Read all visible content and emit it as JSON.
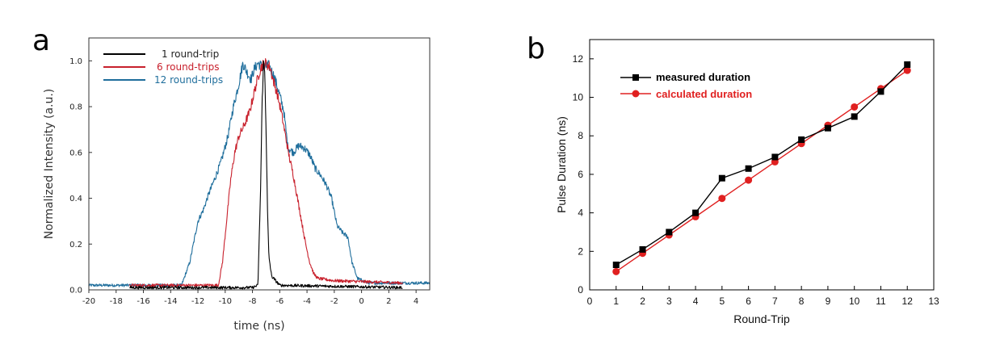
{
  "chart_data": [
    {
      "type": "line",
      "panel_label": "a",
      "xlabel": "time (ns)",
      "ylabel": "Normalized Intensity (a.u.)",
      "xlim": [
        -20,
        5
      ],
      "ylim": [
        0,
        1.1
      ],
      "xticks": [
        -20,
        -18,
        -16,
        -14,
        -12,
        -10,
        -8,
        -6,
        -4,
        -2,
        0,
        2,
        4
      ],
      "yticks": [
        0.0,
        0.2,
        0.4,
        0.6,
        0.8,
        1.0
      ],
      "ytick_labels": [
        "0.0",
        "0.2",
        "0.4",
        "0.6",
        "0.8",
        "1.0"
      ],
      "legend_position": "top-left",
      "series": [
        {
          "name": "1 round-trip",
          "color": "#000000",
          "x": [
            -17,
            -8,
            -7.6,
            -7.4,
            -7.3,
            -7.2,
            -7.1,
            -7.0,
            -6.9,
            -6.8,
            -6.6,
            -6.0,
            3
          ],
          "y": [
            0.01,
            0.01,
            0.02,
            0.45,
            0.8,
            0.99,
            0.95,
            0.7,
            0.35,
            0.15,
            0.06,
            0.02,
            0.01
          ]
        },
        {
          "name": "6 round-trips",
          "color": "#c8202c",
          "x": [
            -17,
            -10.5,
            -10.2,
            -9.9,
            -9.6,
            -9.3,
            -9.0,
            -8.6,
            -8.2,
            -7.8,
            -7.5,
            -7.3,
            -7.0,
            -6.7,
            -6.5,
            -6.2,
            -5.9,
            -5.6,
            -5.3,
            -5.0,
            -4.7,
            -4.4,
            -4.1,
            -3.8,
            -3.5,
            -3.2,
            -2.0,
            3
          ],
          "y": [
            0.02,
            0.02,
            0.12,
            0.3,
            0.48,
            0.6,
            0.67,
            0.72,
            0.78,
            0.88,
            0.95,
            0.98,
            0.99,
            0.97,
            0.92,
            0.86,
            0.78,
            0.68,
            0.58,
            0.5,
            0.4,
            0.3,
            0.2,
            0.12,
            0.07,
            0.05,
            0.04,
            0.03
          ]
        },
        {
          "name": "12 round-trips",
          "color": "#1f6e9c",
          "x": [
            -20,
            -13.2,
            -12.6,
            -12.0,
            -11.6,
            -11.2,
            -10.8,
            -10.3,
            -9.8,
            -9.4,
            -9.0,
            -8.7,
            -8.4,
            -8.1,
            -7.9,
            -7.6,
            -7.2,
            -6.8,
            -6.4,
            -6.0,
            -5.7,
            -5.4,
            -5.0,
            -4.6,
            -4.2,
            -3.8,
            -3.4,
            -3.0,
            -2.6,
            -2.2,
            -1.8,
            -1.4,
            -1.0,
            -0.7,
            -0.3,
            0.5,
            2.0,
            5.0
          ],
          "y": [
            0.02,
            0.02,
            0.12,
            0.3,
            0.35,
            0.42,
            0.48,
            0.56,
            0.67,
            0.8,
            0.9,
            0.99,
            0.95,
            0.92,
            0.96,
            0.99,
            0.97,
            0.98,
            0.93,
            0.85,
            0.78,
            0.62,
            0.6,
            0.63,
            0.62,
            0.59,
            0.53,
            0.5,
            0.46,
            0.4,
            0.28,
            0.25,
            0.23,
            0.12,
            0.05,
            0.03,
            0.03,
            0.03
          ]
        }
      ]
    },
    {
      "type": "line",
      "panel_label": "b",
      "xlabel": "Round-Trip",
      "ylabel": "Pulse Duration (ns)",
      "xlim": [
        0,
        13
      ],
      "ylim": [
        0,
        13
      ],
      "xticks": [
        0,
        1,
        2,
        3,
        4,
        5,
        6,
        7,
        8,
        9,
        10,
        11,
        12,
        13
      ],
      "yticks": [
        0,
        2,
        4,
        6,
        8,
        10,
        12
      ],
      "legend_position": "top-left",
      "series": [
        {
          "name": "measured duration",
          "color": "#000000",
          "marker": "square",
          "x": [
            1,
            2,
            3,
            4,
            5,
            6,
            7,
            8,
            9,
            10,
            11,
            12
          ],
          "y": [
            1.3,
            2.1,
            3.0,
            4.0,
            5.8,
            6.3,
            6.9,
            7.8,
            8.4,
            9.0,
            10.3,
            11.7
          ]
        },
        {
          "name": "calculated duration",
          "color": "#e02020",
          "marker": "circle",
          "x": [
            1,
            2,
            3,
            4,
            5,
            6,
            7,
            8,
            9,
            10,
            11,
            12
          ],
          "y": [
            0.95,
            1.9,
            2.85,
            3.8,
            4.75,
            5.7,
            6.65,
            7.6,
            8.55,
            9.5,
            10.45,
            11.4
          ]
        }
      ]
    }
  ]
}
